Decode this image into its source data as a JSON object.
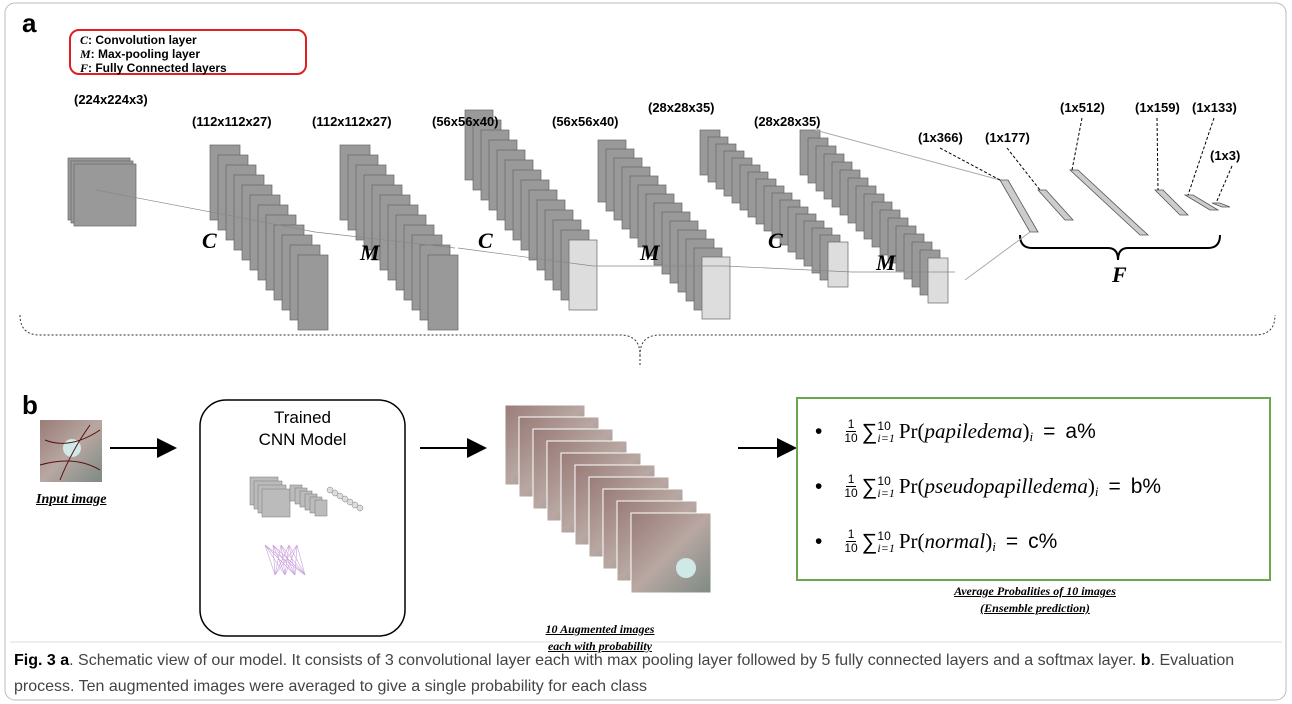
{
  "panel_a": {
    "label": "a",
    "legend": [
      {
        "symbol": "C",
        "text": ": Convolution layer"
      },
      {
        "symbol": "M",
        "text": ": Max-pooling layer"
      },
      {
        "symbol": "F",
        "text": ": Fully Connected layers"
      }
    ],
    "layer_sizes": [
      "(224x224x3)",
      "(112x112x27)",
      "(112x112x27)",
      "(56x56x40)",
      "(56x56x40)",
      "(28x28x35)",
      "(28x28x35)"
    ],
    "operations": [
      "C",
      "M",
      "C",
      "M",
      "C",
      "M"
    ],
    "fc_sizes": [
      "(1x366)",
      "(1x177)",
      "(1x512)",
      "(1x159)",
      "(1x133)",
      "(1x3)"
    ],
    "fc_label": "F"
  },
  "panel_b": {
    "label": "b",
    "input_caption": "Input image",
    "model_title": [
      "Trained",
      "CNN Model"
    ],
    "augmented_caption": [
      "10 Augmented images",
      "each with probability"
    ],
    "formula": {
      "bullet": "•",
      "numerator": "1",
      "denominator": "10",
      "sum": "∑",
      "lower": "i=1",
      "upper": "10",
      "func": "Pr(",
      "close": ")",
      "index": "i",
      "equals": "="
    },
    "results": [
      {
        "class": "papiledema",
        "value": "a%"
      },
      {
        "class": "pseudopapilledema",
        "value": "b%"
      },
      {
        "class": "normal",
        "value": "c%"
      }
    ],
    "results_caption": [
      "Average Probalities of 10 images",
      "(Ensemble prediction)"
    ]
  },
  "caption": {
    "fig": "Fig. 3",
    "a_label": "a",
    "a_text": ". Schematic view of our model. It consists of 3 convolutional layer each with max pooling layer followed by 5 fully connected layers and a softmax layer.",
    "b_label": "b",
    "b_text": ". Evaluation process. Ten augmented images were averaged to give a single probability for each class"
  }
}
